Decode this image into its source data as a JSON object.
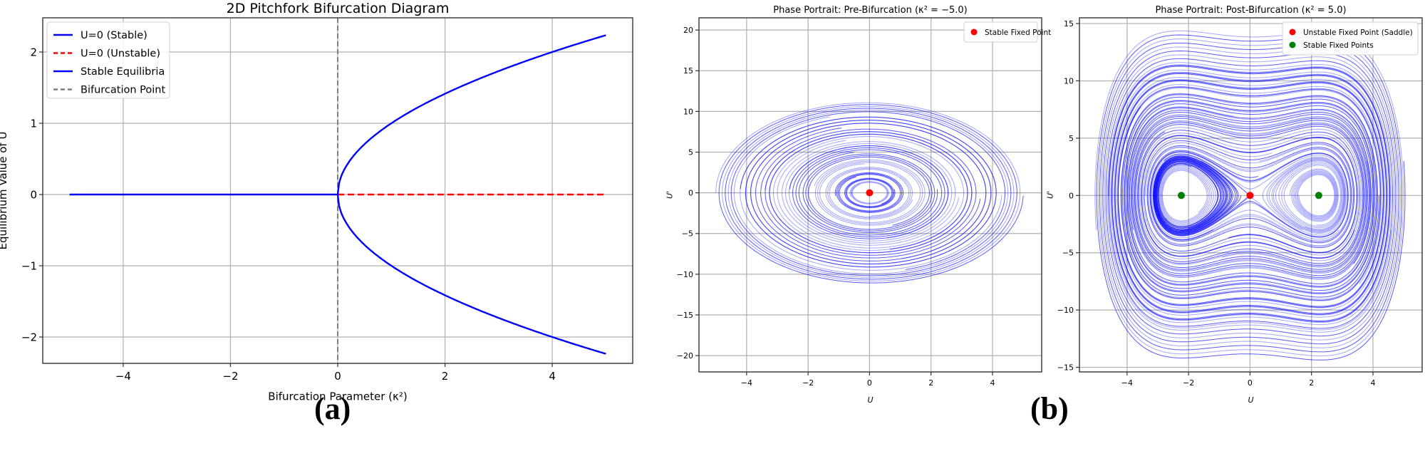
{
  "panels": {
    "a_label": "(a)",
    "b_label": "(b)"
  },
  "chart_data": [
    {
      "type": "line",
      "title": "2D Pitchfork Bifurcation Diagram",
      "xlabel": "Bifurcation Parameter (κ²)",
      "ylabel": "Equilibrium Value of U",
      "xlim": [
        -5.5,
        5.5
      ],
      "ylim": [
        -2.37,
        2.48
      ],
      "xticks": [
        -4,
        -2,
        0,
        2,
        4
      ],
      "yticks": [
        -2,
        -1,
        0,
        1,
        2
      ],
      "grid": true,
      "legend_position": "upper left",
      "legend": [
        {
          "label": "U=0 (Stable)",
          "color": "#0000ff",
          "style": "solid"
        },
        {
          "label": "U=0 (Unstable)",
          "color": "#ff0000",
          "style": "dashed"
        },
        {
          "label": "Stable Equilibria",
          "color": "#0000ff",
          "style": "solid"
        },
        {
          "label": "Bifurcation Point",
          "color": "#808080",
          "style": "dashed"
        }
      ],
      "series": [
        {
          "name": "U=0 (Stable)",
          "x": [
            -5,
            0
          ],
          "y": [
            0,
            0
          ]
        },
        {
          "name": "U=0 (Unstable)",
          "x": [
            0,
            5
          ],
          "y": [
            0,
            0
          ]
        },
        {
          "name": "Stable Equilibria (+)",
          "x": [
            0,
            0.25,
            0.5,
            1,
            2,
            3,
            4,
            5
          ],
          "y": [
            0,
            0.5,
            0.707,
            1,
            1.414,
            1.732,
            2,
            2.236
          ]
        },
        {
          "name": "Stable Equilibria (-)",
          "x": [
            0,
            0.25,
            0.5,
            1,
            2,
            3,
            4,
            5
          ],
          "y": [
            0,
            -0.5,
            -0.707,
            -1,
            -1.414,
            -1.732,
            -2,
            -2.236
          ]
        },
        {
          "name": "Bifurcation Point",
          "x": [
            0,
            0
          ],
          "y": [
            -2.37,
            2.48
          ]
        }
      ]
    },
    {
      "type": "scatter",
      "title": "Phase Portrait: Pre-Bifurcation (κ² = −5.0)",
      "xlabel": "U",
      "ylabel": "U'",
      "xlim": [
        -5.55,
        5.6
      ],
      "ylim": [
        -22,
        21.5
      ],
      "xticks": [
        -4,
        -2,
        0,
        2,
        4
      ],
      "yticks": [
        -20,
        -15,
        -10,
        -5,
        0,
        5,
        10,
        15,
        20
      ],
      "grid": true,
      "legend_position": "upper right",
      "legend": [
        {
          "label": "Stable Fixed Point",
          "color": "#ff0000"
        }
      ],
      "fixed_points": [
        {
          "x": 0,
          "y": 0,
          "color": "#ff0000",
          "type": "stable"
        }
      ],
      "trajectory_color": "#0000ff",
      "trajectory_radii": [
        19.5,
        15.5,
        12,
        9.5,
        7,
        5,
        3.5,
        2.2,
        1.2
      ]
    },
    {
      "type": "scatter",
      "title": "Phase Portrait: Post-Bifurcation (κ² = 5.0)",
      "xlabel": "U",
      "ylabel": "U'",
      "xlim": [
        -5.55,
        5.6
      ],
      "ylim": [
        -15.4,
        15.5
      ],
      "xticks": [
        -4,
        -2,
        0,
        2,
        4
      ],
      "yticks": [
        -15,
        -10,
        -5,
        0,
        5,
        10,
        15
      ],
      "grid": true,
      "legend_position": "upper right",
      "legend": [
        {
          "label": "Unstable Fixed Point (Saddle)",
          "color": "#ff0000"
        },
        {
          "label": "Stable Fixed Points",
          "color": "#008000"
        }
      ],
      "fixed_points": [
        {
          "x": 0,
          "y": 0,
          "color": "#ff0000",
          "type": "saddle"
        },
        {
          "x": -2.236,
          "y": 0,
          "color": "#008000",
          "type": "stable"
        },
        {
          "x": 2.236,
          "y": 0,
          "color": "#008000",
          "type": "stable"
        }
      ],
      "trajectory_color": "#0000ff"
    }
  ]
}
